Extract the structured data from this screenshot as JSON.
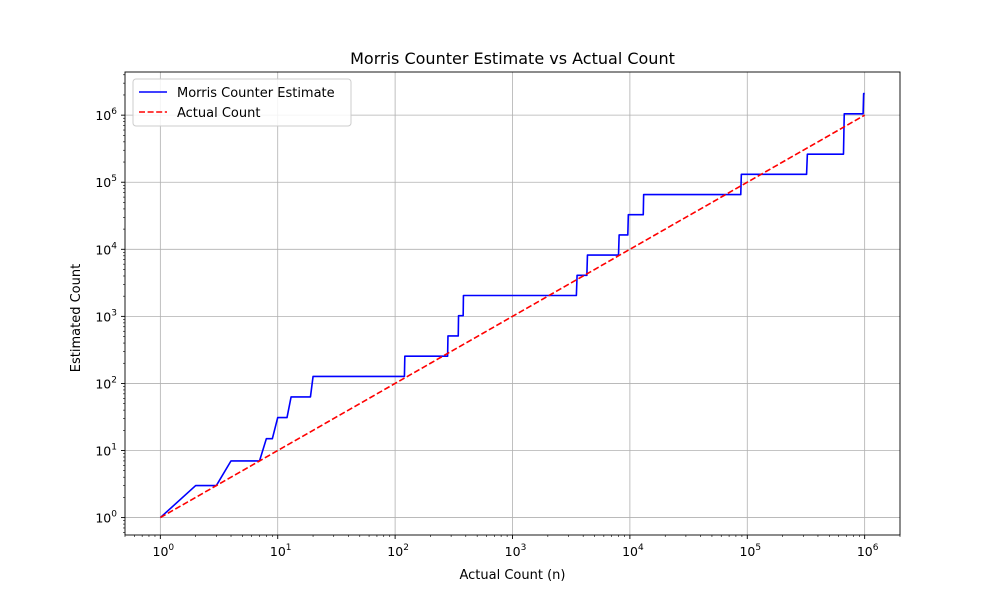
{
  "chart_data": {
    "type": "line",
    "title": "Morris Counter Estimate vs Actual Count",
    "xlabel": "Actual Count (n)",
    "ylabel": "Estimated Count",
    "xscale": "log",
    "yscale": "log",
    "xlim": [
      0.5,
      2000000
    ],
    "ylim": [
      0.55,
      4400000
    ],
    "x_ticks": [
      {
        "base": "10",
        "exp": "0",
        "value": 1
      },
      {
        "base": "10",
        "exp": "1",
        "value": 10
      },
      {
        "base": "10",
        "exp": "2",
        "value": 100
      },
      {
        "base": "10",
        "exp": "3",
        "value": 1000
      },
      {
        "base": "10",
        "exp": "4",
        "value": 10000
      },
      {
        "base": "10",
        "exp": "5",
        "value": 100000
      },
      {
        "base": "10",
        "exp": "6",
        "value": 1000000
      }
    ],
    "y_ticks": [
      {
        "base": "10",
        "exp": "0",
        "value": 1
      },
      {
        "base": "10",
        "exp": "1",
        "value": 10
      },
      {
        "base": "10",
        "exp": "2",
        "value": 100
      },
      {
        "base": "10",
        "exp": "3",
        "value": 1000
      },
      {
        "base": "10",
        "exp": "4",
        "value": 10000
      },
      {
        "base": "10",
        "exp": "5",
        "value": 100000
      },
      {
        "base": "10",
        "exp": "6",
        "value": 1000000
      }
    ],
    "grid": true,
    "legend": "top-left",
    "series": [
      {
        "name": "Morris Counter Estimate",
        "color": "#0000ff",
        "style": "solid",
        "points": [
          [
            1,
            1
          ],
          [
            2,
            3
          ],
          [
            3,
            3
          ],
          [
            4,
            7
          ],
          [
            7,
            7
          ],
          [
            8,
            15
          ],
          [
            9,
            15
          ],
          [
            10,
            31
          ],
          [
            12,
            31
          ],
          [
            13,
            63
          ],
          [
            19,
            63
          ],
          [
            20,
            127
          ],
          [
            120,
            127
          ],
          [
            121,
            255
          ],
          [
            280,
            255
          ],
          [
            282,
            511
          ],
          [
            345,
            511
          ],
          [
            347,
            1023
          ],
          [
            380,
            1023
          ],
          [
            382,
            2047
          ],
          [
            3500,
            2047
          ],
          [
            3550,
            4095
          ],
          [
            4300,
            4095
          ],
          [
            4350,
            8191
          ],
          [
            8000,
            8191
          ],
          [
            8100,
            16383
          ],
          [
            9600,
            16383
          ],
          [
            9700,
            32767
          ],
          [
            13000,
            32767
          ],
          [
            13100,
            65535
          ],
          [
            88000,
            65535
          ],
          [
            89000,
            131071
          ],
          [
            320000,
            131071
          ],
          [
            325000,
            262143
          ],
          [
            660000,
            262143
          ],
          [
            665000,
            524287
          ],
          [
            670000,
            1048575
          ],
          [
            970000,
            1048575
          ],
          [
            980000,
            2097151
          ],
          [
            1000000,
            2097151
          ]
        ]
      },
      {
        "name": "Actual Count",
        "color": "#ff0000",
        "style": "dashed",
        "points": [
          [
            1,
            1
          ],
          [
            1000000,
            1000000
          ]
        ]
      }
    ]
  }
}
